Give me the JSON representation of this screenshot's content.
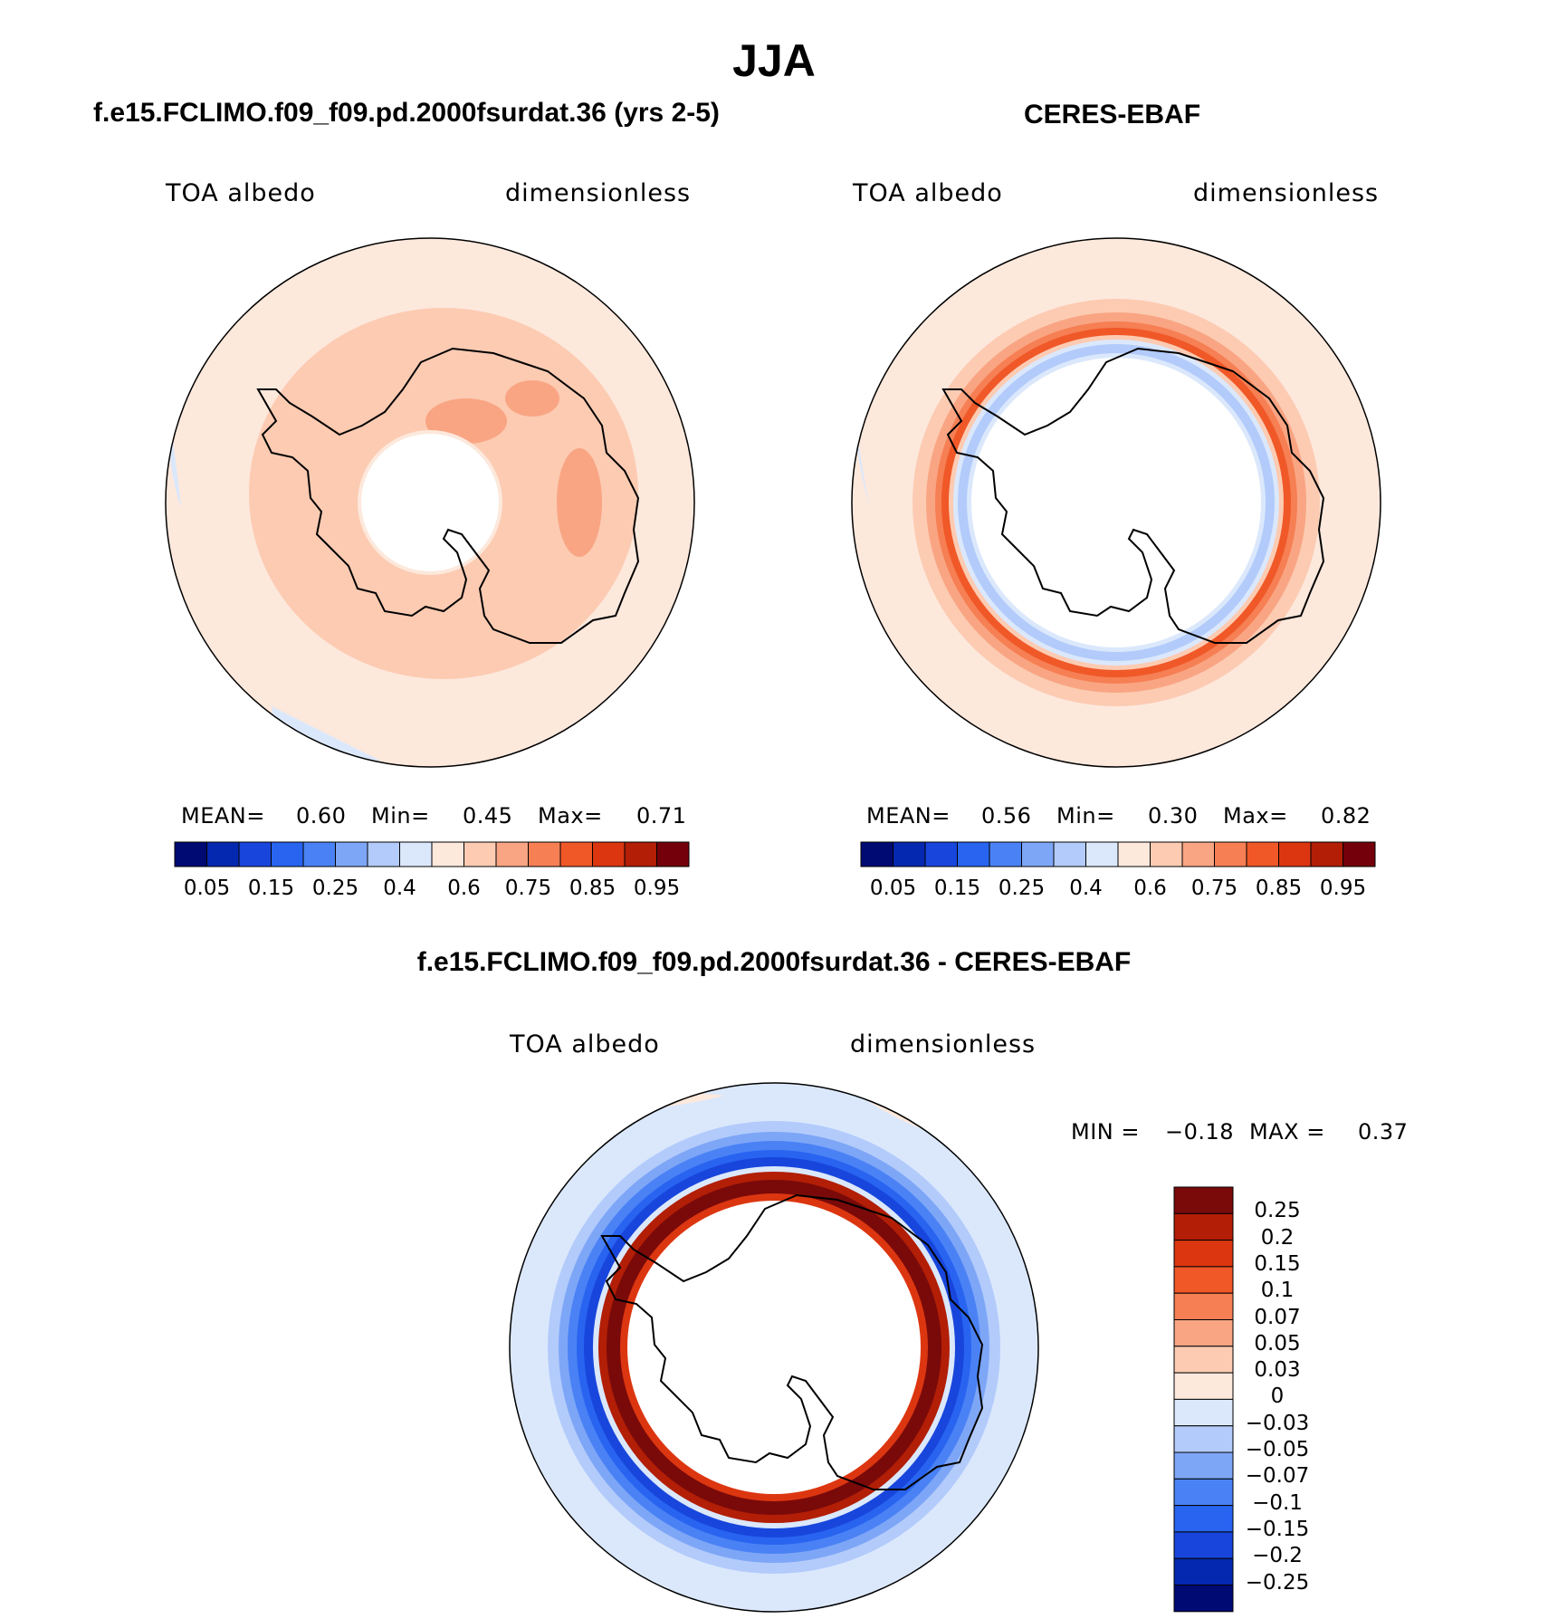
{
  "figure": {
    "title": "JJA",
    "panels": [
      {
        "id": "model",
        "title": "f.e15.FCLIMO.f09_f09.pd.2000fsurdat.36 (yrs 2-5)",
        "variable": "TOA albedo",
        "units": "dimensionless",
        "stats": {
          "mean_label": "MEAN=",
          "mean": "0.60",
          "min_label": "Min=",
          "min": "0.45",
          "max_label": "Max=",
          "max": "0.71"
        }
      },
      {
        "id": "obs",
        "title": "CERES-EBAF",
        "variable": "TOA albedo",
        "units": "dimensionless",
        "stats": {
          "mean_label": "MEAN=",
          "mean": "0.56",
          "min_label": "Min=",
          "min": "0.30",
          "max_label": "Max=",
          "max": "0.82"
        }
      },
      {
        "id": "diff",
        "title": "f.e15.FCLIMO.f09_f09.pd.2000fsurdat.36 - CERES-EBAF",
        "variable": "TOA albedo",
        "units": "dimensionless",
        "stats": {
          "min_label": "MIN =",
          "min": "−0.18",
          "max_label": "MAX =",
          "max": "0.37"
        }
      }
    ],
    "colorbar_horizontal": {
      "colors": [
        "#000a73",
        "#0528b0",
        "#1846dc",
        "#2864f0",
        "#4a82f5",
        "#7ea6f7",
        "#b2cbfb",
        "#dbe8fc",
        "#fde8dc",
        "#fccbb2",
        "#f9a583",
        "#f67f54",
        "#f05828",
        "#dc3610",
        "#b21e06",
        "#73000a"
      ],
      "tick_labels": [
        "0.05",
        "0.15",
        "0.25",
        "0.4",
        "0.6",
        "0.75",
        "0.85",
        "0.95"
      ]
    },
    "colorbar_vertical": {
      "colors_top_to_bottom": [
        "#7a0a0a",
        "#b21e06",
        "#dc3610",
        "#f05828",
        "#f67f54",
        "#f9a583",
        "#fccbb2",
        "#fde8dc",
        "#dbe8fc",
        "#b2cbfb",
        "#7ea6f7",
        "#4a82f5",
        "#2864f0",
        "#1846dc",
        "#0528b0",
        "#000a73"
      ],
      "tick_labels": [
        "0.25",
        "0.2",
        "0.15",
        "0.1",
        "0.07",
        "0.05",
        "0.03",
        "0",
        "−0.03",
        "−0.05",
        "−0.07",
        "−0.1",
        "−0.15",
        "−0.2",
        "−0.25"
      ]
    }
  }
}
